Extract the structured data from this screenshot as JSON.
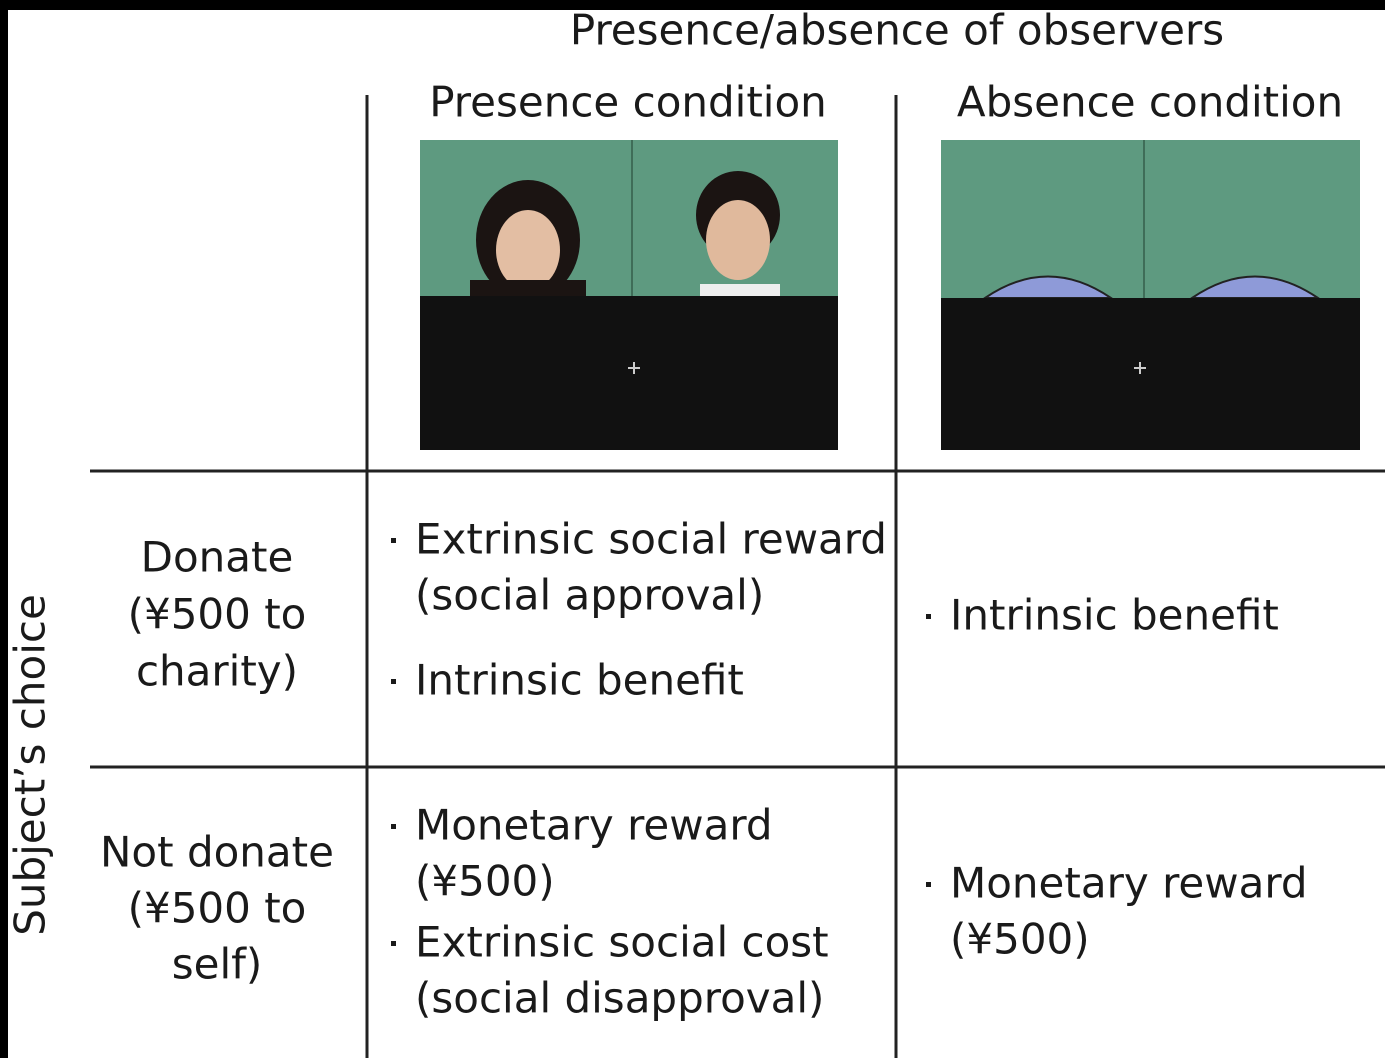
{
  "header": {
    "title": "Presence/absence of observers",
    "columns": [
      "Presence condition",
      "Absence condition"
    ]
  },
  "row_axis": "Subject’s choice",
  "rows": [
    {
      "label": [
        "Donate",
        "(¥500  to",
        "charity)"
      ],
      "cells": [
        [
          {
            "lines": [
              "Extrinsic social reward",
              "(social approval)"
            ],
            "color": "#e2431f"
          },
          {
            "lines": [
              "Intrinsic benefit"
            ],
            "color": "#1a1a1a"
          }
        ],
        [
          {
            "lines": [
              "Intrinsic benefit"
            ],
            "color": "#1a1a1a"
          }
        ]
      ]
    },
    {
      "label": [
        "Not donate",
        "(¥500  to",
        "self)"
      ],
      "cells": [
        [
          {
            "lines": [
              "Monetary reward",
              "(¥500)"
            ],
            "color": "#1a1a1a"
          },
          {
            "lines": [
              "Extrinsic social cost",
              "(social disapproval)"
            ],
            "color": "#2aa6de"
          }
        ],
        [
          {
            "lines": [
              "Monetary reward",
              "(¥500)"
            ],
            "color": "#1a1a1a"
          }
        ]
      ]
    }
  ]
}
